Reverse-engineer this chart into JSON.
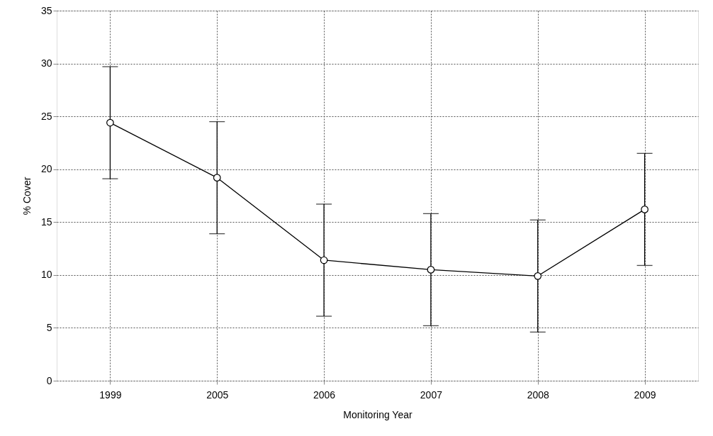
{
  "chart_data": {
    "type": "line",
    "xlabel": "Monitoring Year",
    "ylabel": "% Cover",
    "categories": [
      "1999",
      "2005",
      "2006",
      "2007",
      "2008",
      "2009"
    ],
    "series": [
      {
        "color": "#000000",
        "values": [
          24.4,
          19.2,
          11.4,
          10.5,
          9.9,
          16.2
        ],
        "errors": [
          5.3,
          5.3,
          5.3,
          5.3,
          5.3,
          5.3
        ]
      }
    ],
    "ylim": [
      0,
      35
    ],
    "yticks": [
      0,
      5,
      10,
      15,
      20,
      25,
      30,
      35
    ],
    "grid": true,
    "marker": "circle",
    "line_style": "solid"
  }
}
